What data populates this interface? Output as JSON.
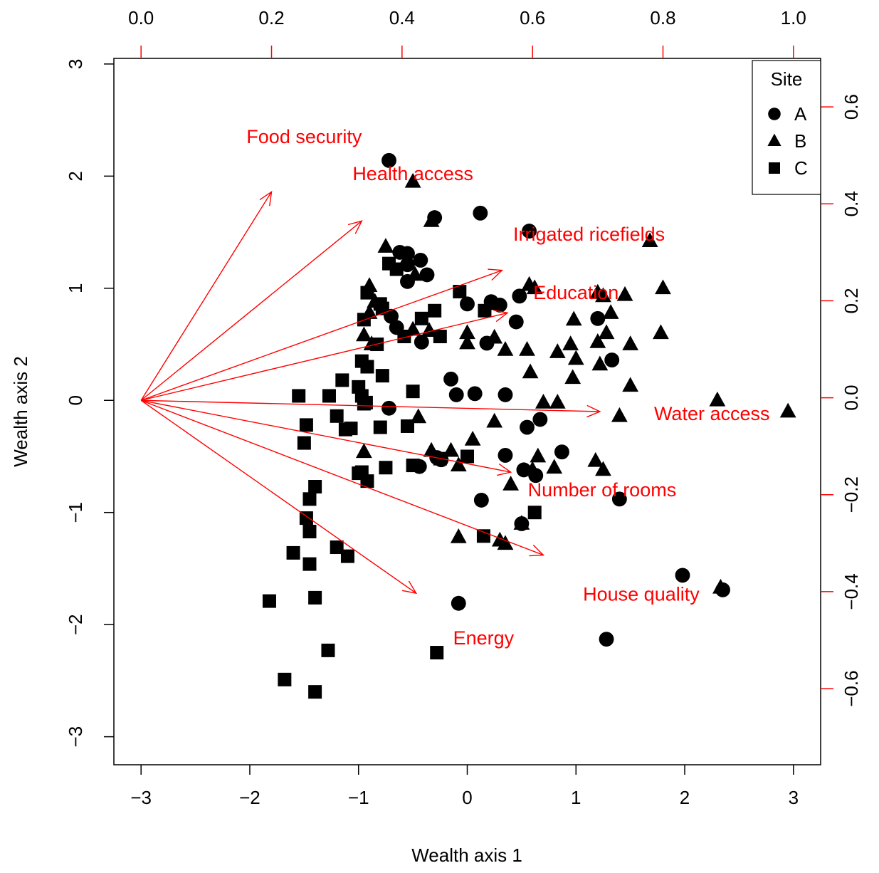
{
  "chart_data": {
    "type": "scatter",
    "title": "",
    "xlabel": "Wealth axis 1",
    "ylabel": "Wealth axis 2",
    "xlim": [
      -3.25,
      3.25
    ],
    "ylim": [
      -3.25,
      3.05
    ],
    "x_ticks": [
      -3,
      -2,
      -1,
      0,
      1,
      2,
      3
    ],
    "y_ticks": [
      -3,
      -2,
      -1,
      0,
      1,
      2,
      3
    ],
    "top_axis": {
      "range": [
        0.0,
        1.0
      ],
      "ticks": [
        "0.0",
        "0.2",
        "0.4",
        "0.6",
        "0.8",
        "1.0"
      ],
      "color": "#ff0000"
    },
    "right_axis": {
      "ticks": [
        0.6,
        0.4,
        0.2,
        0.0,
        -0.2,
        -0.4,
        -0.6
      ],
      "tick_labels": [
        "0.6",
        "0.4",
        "0.2",
        "0.0",
        "−0.2",
        "−0.4",
        "−0.6"
      ],
      "range": [
        -0.757,
        0.7
      ],
      "color": "#ff0000"
    },
    "x_tick_labels": [
      "−3",
      "−2",
      "−1",
      "0",
      "1",
      "2",
      "3"
    ],
    "y_tick_labels": [
      "−3",
      "−2",
      "−1",
      "0",
      "1",
      "2",
      "3"
    ],
    "grid": false,
    "legend": {
      "title": "Site",
      "placement": "top-right",
      "entries": [
        {
          "label": "A",
          "shape": "circle"
        },
        {
          "label": "B",
          "shape": "triangle"
        },
        {
          "label": "C",
          "shape": "square"
        }
      ]
    },
    "marker_color": "#000000",
    "arrow_color": "#ff0000",
    "arrow_origin": [
      -3.0,
      0.0
    ],
    "arrows": [
      {
        "label": "Food security",
        "end": [
          -1.8,
          1.86
        ],
        "label_pos": [
          -1.5,
          2.35
        ]
      },
      {
        "label": "Health access",
        "end": [
          -0.97,
          1.6
        ],
        "label_pos": [
          -0.5,
          2.02
        ]
      },
      {
        "label": "Irrigated ricefields",
        "end": [
          0.32,
          1.16
        ],
        "label_pos": [
          1.12,
          1.48
        ]
      },
      {
        "label": "Education",
        "end": [
          0.37,
          0.78
        ],
        "label_pos": [
          1.0,
          0.96
        ]
      },
      {
        "label": "Water access",
        "end": [
          1.22,
          -0.1
        ],
        "label_pos": [
          2.25,
          -0.12
        ]
      },
      {
        "label": "Number of rooms",
        "end": [
          0.4,
          -0.64
        ],
        "label_pos": [
          1.24,
          -0.8
        ]
      },
      {
        "label": "House quality",
        "end": [
          0.7,
          -1.38
        ],
        "label_pos": [
          1.6,
          -1.73
        ]
      },
      {
        "label": "Energy",
        "end": [
          -0.47,
          -1.72
        ],
        "label_pos": [
          0.15,
          -2.12
        ]
      }
    ],
    "series": [
      {
        "name": "A",
        "shape": "circle",
        "points": [
          [
            -0.72,
            2.14
          ],
          [
            -0.3,
            1.63
          ],
          [
            0.12,
            1.67
          ],
          [
            0.57,
            1.51
          ],
          [
            -0.62,
            1.32
          ],
          [
            -0.55,
            1.31
          ],
          [
            -0.43,
            1.25
          ],
          [
            -0.37,
            1.12
          ],
          [
            -0.55,
            1.21
          ],
          [
            -0.55,
            1.06
          ],
          [
            -0.7,
            0.75
          ],
          [
            -0.65,
            0.65
          ],
          [
            -0.42,
            0.52
          ],
          [
            0.0,
            0.86
          ],
          [
            0.22,
            0.88
          ],
          [
            0.3,
            0.85
          ],
          [
            0.48,
            0.93
          ],
          [
            0.18,
            0.51
          ],
          [
            0.45,
            0.7
          ],
          [
            -0.15,
            0.19
          ],
          [
            -0.1,
            0.05
          ],
          [
            0.07,
            0.06
          ],
          [
            0.35,
            0.05
          ],
          [
            1.2,
            0.73
          ],
          [
            1.33,
            0.36
          ],
          [
            0.55,
            -0.24
          ],
          [
            0.67,
            -0.17
          ],
          [
            0.35,
            -0.49
          ],
          [
            0.52,
            -0.62
          ],
          [
            0.63,
            -0.67
          ],
          [
            0.87,
            -0.46
          ],
          [
            0.13,
            -0.89
          ],
          [
            1.4,
            -0.88
          ],
          [
            0.5,
            -1.1
          ],
          [
            -0.44,
            -0.59
          ],
          [
            -0.24,
            -0.53
          ],
          [
            -0.08,
            -1.81
          ],
          [
            1.28,
            -2.13
          ],
          [
            1.98,
            -1.56
          ],
          [
            2.35,
            -1.69
          ],
          [
            -0.72,
            -0.07
          ],
          [
            -0.28,
            -0.51
          ]
        ]
      },
      {
        "name": "B",
        "shape": "triangle",
        "points": [
          [
            -0.5,
            1.95
          ],
          [
            -0.33,
            1.6
          ],
          [
            -0.75,
            1.37
          ],
          [
            -0.48,
            1.12
          ],
          [
            -0.9,
            1.02
          ],
          [
            -0.85,
            0.88
          ],
          [
            -0.9,
            0.78
          ],
          [
            -0.95,
            0.58
          ],
          [
            -0.88,
            0.5
          ],
          [
            -0.5,
            0.63
          ],
          [
            -0.35,
            0.62
          ],
          [
            0.0,
            0.6
          ],
          [
            0.0,
            0.51
          ],
          [
            0.25,
            0.56
          ],
          [
            0.25,
            0.86
          ],
          [
            0.35,
            0.45
          ],
          [
            0.55,
            0.45
          ],
          [
            0.57,
            1.03
          ],
          [
            0.62,
            1.0
          ],
          [
            0.58,
            0.25
          ],
          [
            0.83,
            0.43
          ],
          [
            0.95,
            0.5
          ],
          [
            0.98,
            0.72
          ],
          [
            1.0,
            0.37
          ],
          [
            0.97,
            0.2
          ],
          [
            1.2,
            0.96
          ],
          [
            1.25,
            0.93
          ],
          [
            1.28,
            0.6
          ],
          [
            1.2,
            0.52
          ],
          [
            1.32,
            0.78
          ],
          [
            1.22,
            0.32
          ],
          [
            1.45,
            0.94
          ],
          [
            1.5,
            0.5
          ],
          [
            1.68,
            1.42
          ],
          [
            1.8,
            1.0
          ],
          [
            1.78,
            0.6
          ],
          [
            1.5,
            0.13
          ],
          [
            0.7,
            -0.02
          ],
          [
            0.83,
            -0.02
          ],
          [
            1.4,
            -0.14
          ],
          [
            2.3,
            0.0
          ],
          [
            2.95,
            -0.1
          ],
          [
            0.25,
            -0.19
          ],
          [
            -0.45,
            -0.15
          ],
          [
            0.05,
            -0.35
          ],
          [
            -0.15,
            -0.45
          ],
          [
            -0.33,
            -0.45
          ],
          [
            -0.08,
            -0.58
          ],
          [
            -0.95,
            -0.46
          ],
          [
            0.4,
            -0.75
          ],
          [
            0.65,
            -0.5
          ],
          [
            0.8,
            -0.6
          ],
          [
            1.18,
            -0.54
          ],
          [
            1.25,
            -0.62
          ],
          [
            0.5,
            -1.1
          ],
          [
            0.35,
            -1.28
          ],
          [
            0.3,
            -1.25
          ],
          [
            -0.08,
            -1.22
          ],
          [
            2.33,
            -1.67
          ],
          [
            0.6,
            -0.62
          ]
        ]
      },
      {
        "name": "C",
        "shape": "square",
        "points": [
          [
            -0.72,
            1.22
          ],
          [
            -0.65,
            1.17
          ],
          [
            -0.92,
            0.96
          ],
          [
            -0.8,
            0.86
          ],
          [
            -0.78,
            0.82
          ],
          [
            -0.95,
            0.72
          ],
          [
            -0.42,
            0.73
          ],
          [
            -0.3,
            0.8
          ],
          [
            -0.25,
            0.57
          ],
          [
            -0.07,
            0.97
          ],
          [
            0.16,
            0.8
          ],
          [
            -0.58,
            0.57
          ],
          [
            -0.83,
            0.5
          ],
          [
            -0.97,
            0.35
          ],
          [
            -0.92,
            0.3
          ],
          [
            -1.0,
            0.12
          ],
          [
            -1.15,
            0.18
          ],
          [
            -0.78,
            0.22
          ],
          [
            -0.5,
            0.08
          ],
          [
            -1.55,
            0.04
          ],
          [
            -1.27,
            0.04
          ],
          [
            -0.97,
            0.04
          ],
          [
            -0.95,
            -0.03
          ],
          [
            -0.93,
            -0.02
          ],
          [
            -1.48,
            -0.22
          ],
          [
            -1.2,
            -0.14
          ],
          [
            -1.12,
            -0.26
          ],
          [
            -1.07,
            -0.25
          ],
          [
            -0.8,
            -0.24
          ],
          [
            -0.55,
            -0.23
          ],
          [
            -1.5,
            -0.38
          ],
          [
            -0.97,
            -0.64
          ],
          [
            -0.92,
            -0.72
          ],
          [
            -0.75,
            -0.6
          ],
          [
            -0.5,
            -0.58
          ],
          [
            -0.25,
            -0.52
          ],
          [
            0.0,
            -0.5
          ],
          [
            -1.4,
            -0.77
          ],
          [
            -1.45,
            -0.88
          ],
          [
            -1.48,
            -1.05
          ],
          [
            -1.45,
            -1.17
          ],
          [
            -1.2,
            -1.31
          ],
          [
            -1.1,
            -1.39
          ],
          [
            -1.6,
            -1.36
          ],
          [
            -1.45,
            -1.46
          ],
          [
            -1.82,
            -1.79
          ],
          [
            -1.4,
            -1.76
          ],
          [
            -1.28,
            -2.23
          ],
          [
            -1.68,
            -2.49
          ],
          [
            -1.4,
            -2.6
          ],
          [
            -0.28,
            -2.25
          ],
          [
            0.15,
            -1.21
          ],
          [
            0.62,
            -1.0
          ],
          [
            -1.0,
            -0.65
          ]
        ]
      }
    ]
  }
}
